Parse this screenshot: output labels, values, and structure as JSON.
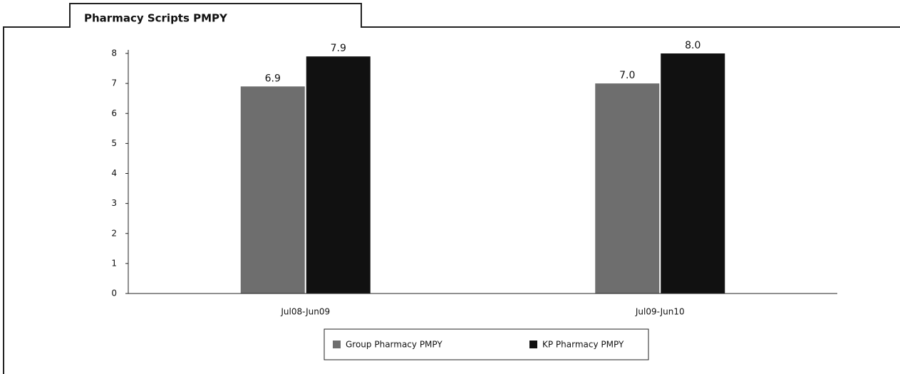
{
  "chart_data": {
    "type": "bar",
    "title": "Pharmacy Scripts PMPY",
    "categories": [
      "Jul08-Jun09",
      "Jul09-Jun10"
    ],
    "series": [
      {
        "name": "Group Pharmacy PMPY",
        "color": "#6e6e6e",
        "values": [
          6.9,
          7.0
        ],
        "value_labels": [
          "6.9",
          "7.0"
        ]
      },
      {
        "name": "KP Pharmacy PMPY",
        "color": "#111111",
        "values": [
          7.9,
          8.0
        ],
        "value_labels": [
          "7.9",
          "8.0"
        ]
      }
    ],
    "ylim": [
      0,
      8
    ],
    "yticks": [
      0,
      1,
      2,
      3,
      4,
      5,
      6,
      7,
      8
    ],
    "grid": false,
    "legend": "bottom"
  }
}
